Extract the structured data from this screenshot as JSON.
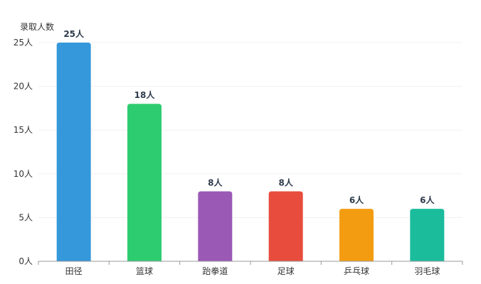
{
  "chart_data": {
    "type": "bar",
    "ylabel": "录取人数",
    "unit_suffix": "人",
    "categories": [
      "田径",
      "篮球",
      "跆拳道",
      "足球",
      "乒乓球",
      "羽毛球"
    ],
    "values": [
      25,
      18,
      8,
      8,
      6,
      6
    ],
    "value_labels": [
      "25人",
      "18人",
      "8人",
      "8人",
      "6人",
      "6人"
    ],
    "colors": [
      "#3498db",
      "#2ecc71",
      "#9b59b6",
      "#e74c3c",
      "#f39c12",
      "#1abc9c"
    ],
    "ylim": [
      0,
      25
    ],
    "yticks": [
      0,
      5,
      10,
      15,
      20,
      25
    ],
    "ytick_labels": [
      "0人",
      "5人",
      "10人",
      "15人",
      "20人",
      "25人"
    ],
    "grid": true,
    "legend": "none"
  }
}
